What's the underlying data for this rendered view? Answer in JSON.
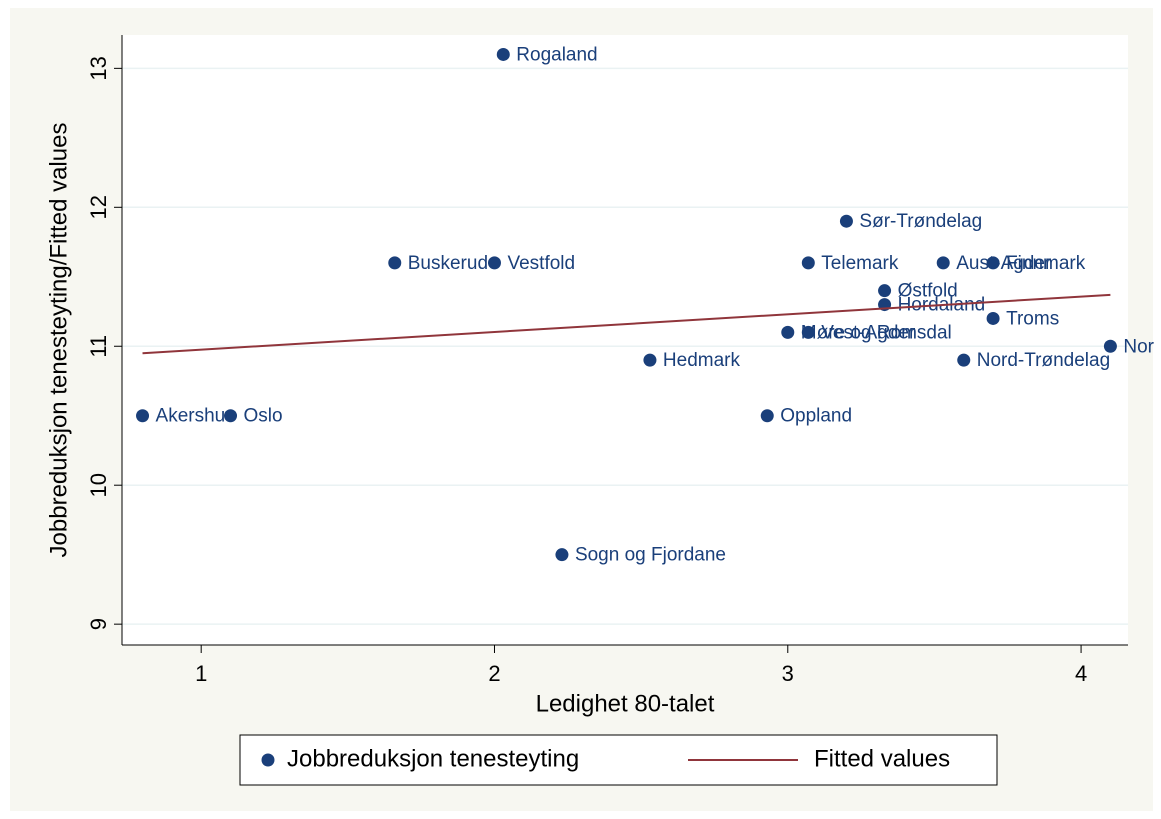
{
  "chart_data": {
    "type": "scatter",
    "xlabel": "Ledighet 80-talet",
    "ylabel": "Jobbreduksjon tenesteyting/Fitted values",
    "xlim": [
      0.73,
      4.16
    ],
    "ylim": [
      8.85,
      13.24
    ],
    "xticks": [
      1,
      2,
      3,
      4
    ],
    "yticks": [
      9,
      10,
      11,
      12,
      13
    ],
    "series": [
      {
        "name": "Jobbreduksjon tenesteyting",
        "kind": "scatter",
        "color": "#1a3f7a",
        "x": [
          2.03,
          3.2,
          1.66,
          2.0,
          3.07,
          3.53,
          3.7,
          3.33,
          3.33,
          3.7,
          3.0,
          3.07,
          4.1,
          2.53,
          3.6,
          0.8,
          1.1,
          2.93,
          2.23
        ],
        "values": [
          13.1,
          11.9,
          11.6,
          11.6,
          11.6,
          11.6,
          11.6,
          11.4,
          11.3,
          11.2,
          11.1,
          11.1,
          11.0,
          10.9,
          10.9,
          10.5,
          10.5,
          10.5,
          9.5
        ],
        "labels": [
          "Rogaland",
          "Sør-Trøndelag",
          "Buskerud",
          "Vestfold",
          "Telemark",
          "Aust-Agder",
          "Finnmark",
          "Østfold",
          "Hordaland",
          "Troms",
          "Møre og Romsdal",
          "Vest-Agder",
          "Nor",
          "Hedmark",
          "Nord-Trøndelag",
          "Akershus",
          "Oslo",
          "Oppland",
          "Sogn og Fjordane"
        ]
      },
      {
        "name": "Fitted values",
        "kind": "line",
        "color": "#90353b",
        "x": [
          0.8,
          4.1
        ],
        "values": [
          10.95,
          11.37
        ]
      }
    ]
  }
}
